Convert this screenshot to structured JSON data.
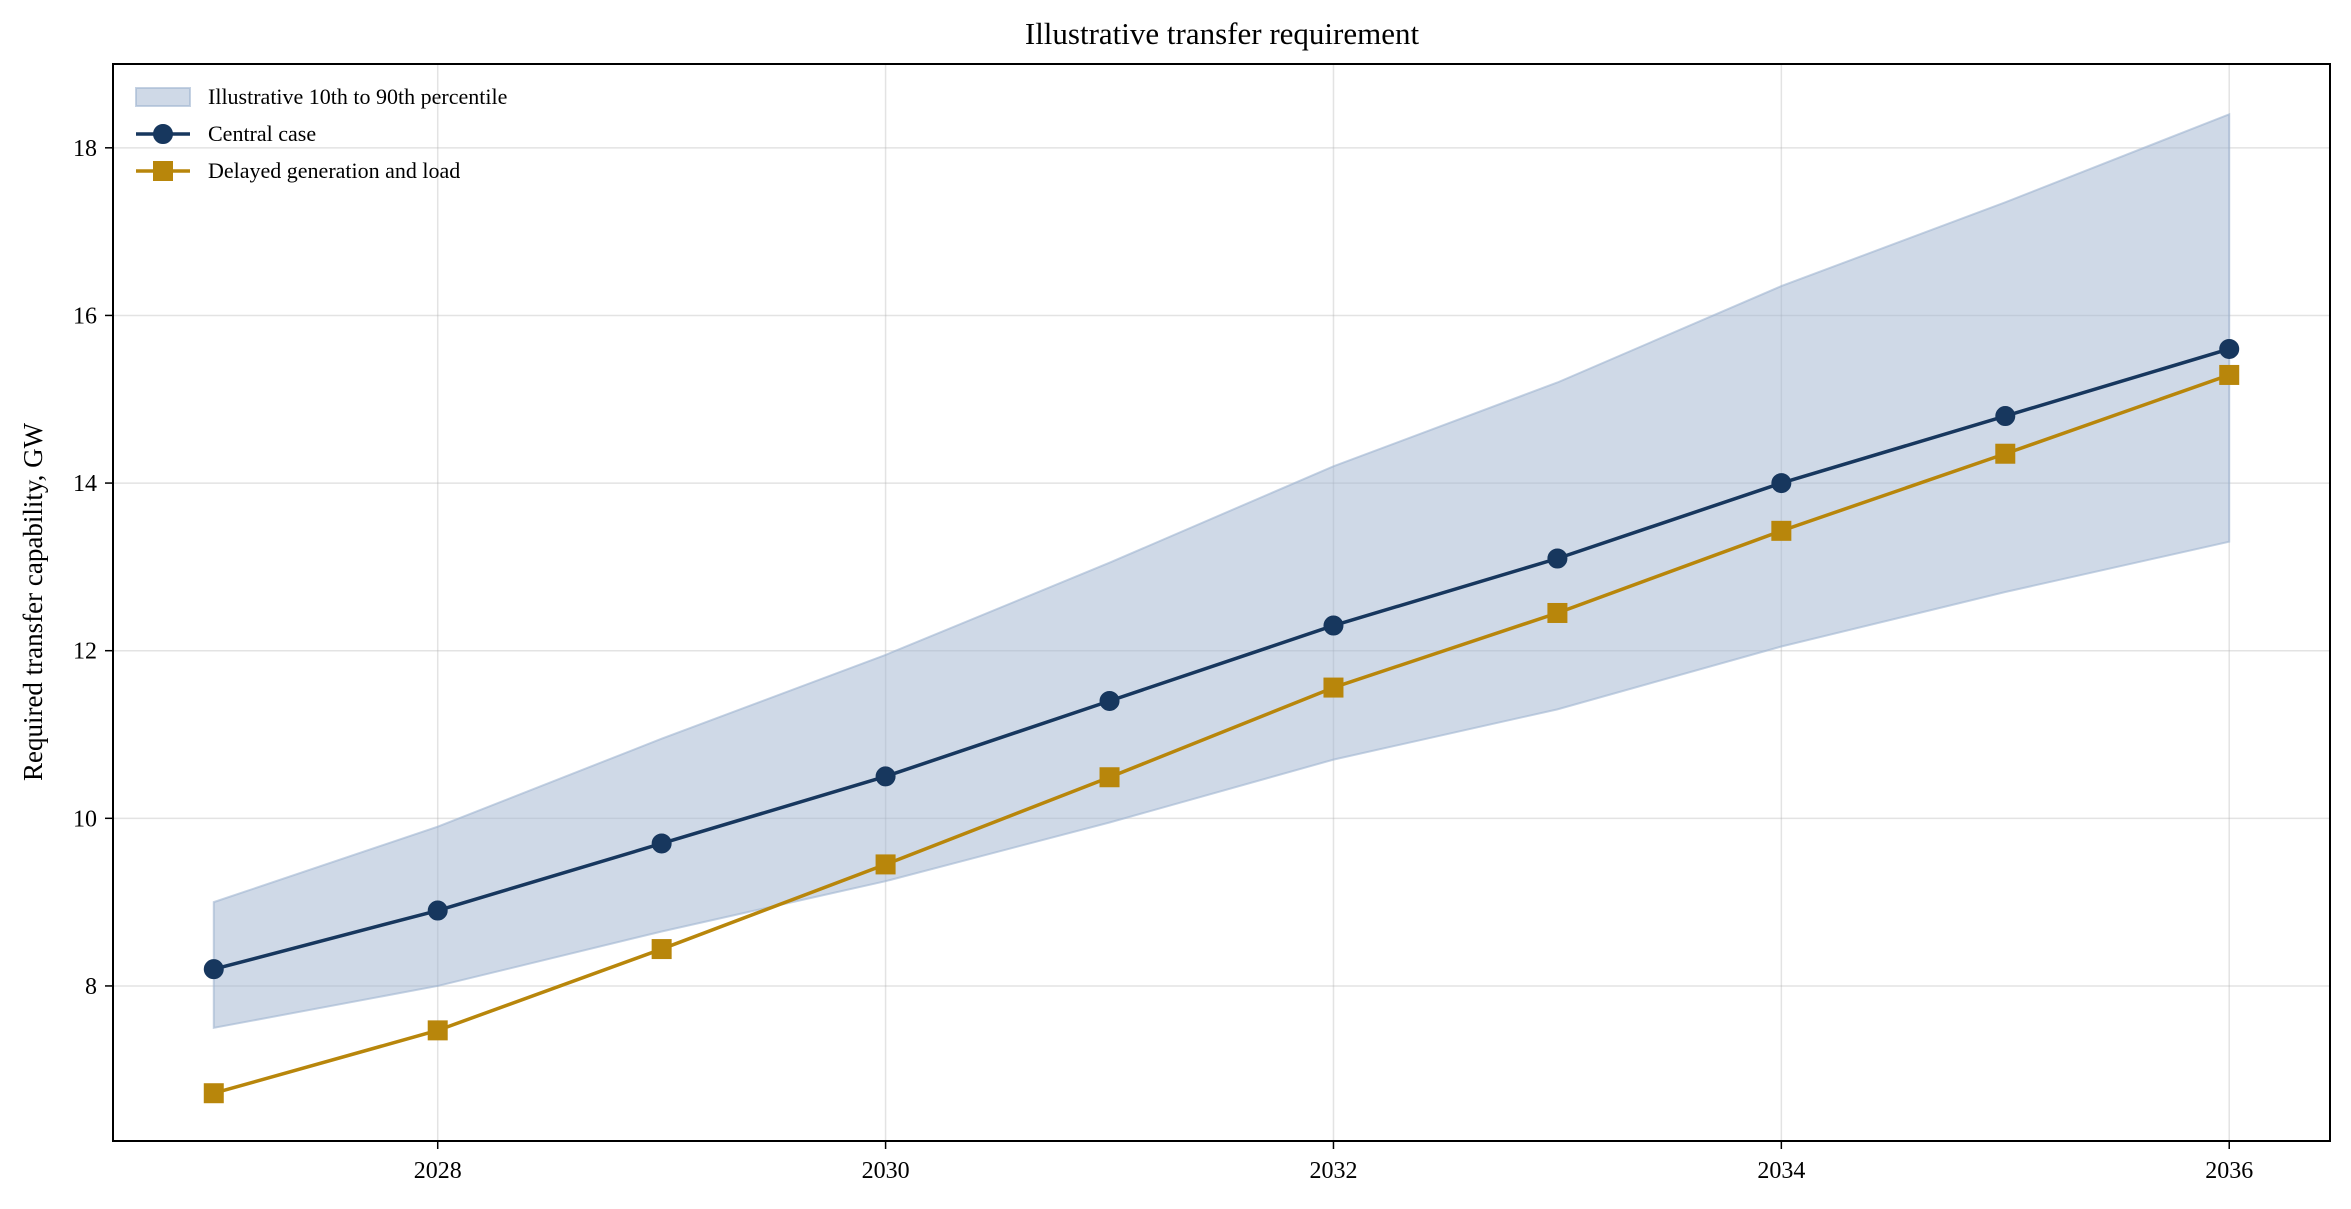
{
  "chart_data": {
    "type": "line",
    "title": "Illustrative transfer requirement",
    "xlabel": "",
    "ylabel": "Required transfer capability, GW",
    "x": [
      2027,
      2028,
      2029,
      2030,
      2031,
      2032,
      2033,
      2034,
      2035,
      2036
    ],
    "xticks": [
      2028,
      2030,
      2032,
      2034,
      2036
    ],
    "yticks": [
      8,
      10,
      12,
      14,
      16,
      18
    ],
    "xlim": [
      2026.55,
      2036.45
    ],
    "ylim": [
      6.15,
      19.0
    ],
    "grid": true,
    "legend_position": "top-left",
    "band": {
      "name": "Illustrative 10th to 90th percentile",
      "color": "#9fb4d0",
      "lower": [
        7.5,
        8.0,
        8.65,
        9.25,
        9.95,
        10.7,
        11.3,
        12.05,
        12.7,
        13.3
      ],
      "upper": [
        9.0,
        9.9,
        10.95,
        11.95,
        13.05,
        14.2,
        15.2,
        16.35,
        17.35,
        18.4
      ]
    },
    "series": [
      {
        "name": "Central case",
        "color": "#17375e",
        "marker": "circle",
        "values": [
          8.2,
          8.9,
          9.7,
          10.5,
          11.4,
          12.3,
          13.1,
          14.0,
          14.8,
          15.6
        ]
      },
      {
        "name": "Delayed generation and load",
        "color": "#b8860b",
        "marker": "square",
        "values": [
          6.72,
          7.47,
          8.44,
          9.45,
          10.49,
          11.56,
          12.45,
          13.43,
          14.35,
          15.29
        ]
      }
    ]
  }
}
